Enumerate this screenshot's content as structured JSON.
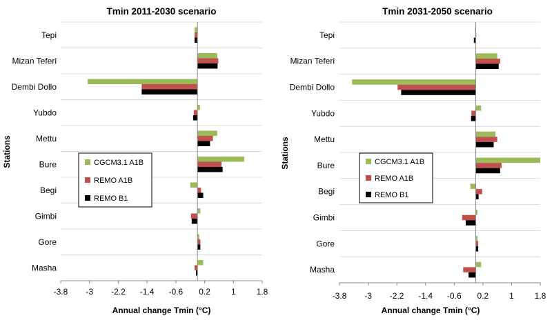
{
  "figure": {
    "y_axis_label": "Stations"
  },
  "chart_data": [
    {
      "type": "bar",
      "orientation": "horizontal",
      "title": "Tmin 2011-2030 scenario",
      "xlabel": "Annual change Tmin (°C)",
      "ylabel": "Stations",
      "xlim": [
        -3.8,
        1.8
      ],
      "xticks": [
        "-3.8",
        "-3",
        "-2.2",
        "-1.4",
        "-0.6",
        "0.2",
        "1",
        "1.8"
      ],
      "grid": "horizontal",
      "legend_position": "left-center",
      "categories": [
        "Tepi",
        "Mizan Teferi",
        "Dembi Dollo",
        "Yubdo",
        "Mettu",
        "Bure",
        "Begi",
        "Gimbi",
        "Gore",
        "Masha"
      ],
      "series": [
        {
          "name": "CGCM3.1 A1B",
          "color": "#9BBB59",
          "values": [
            -0.08,
            0.55,
            -3.05,
            0.07,
            0.55,
            1.3,
            -0.2,
            0.08,
            0.05,
            0.16
          ]
        },
        {
          "name": "REMO A1B",
          "color": "#C0504D",
          "values": [
            -0.08,
            0.58,
            -1.55,
            -0.1,
            0.43,
            0.67,
            0.1,
            -0.18,
            0.08,
            -0.08
          ]
        },
        {
          "name": "REMO B1",
          "color": "#000000",
          "values": [
            -0.08,
            0.56,
            -1.55,
            -0.12,
            0.35,
            0.7,
            0.16,
            -0.16,
            0.08,
            -0.04
          ]
        }
      ]
    },
    {
      "type": "bar",
      "orientation": "horizontal",
      "title": "Tmin 2031-2050 scenario",
      "xlabel": "Annual change Tmin (°C)",
      "ylabel": "Stations",
      "xlim": [
        -3.8,
        1.8
      ],
      "xticks": [
        "-3.8",
        "-3",
        "-2.2",
        "-1.4",
        "-0.6",
        "0.2",
        "1",
        "1.8"
      ],
      "grid": "horizontal",
      "legend_position": "left-center",
      "categories": [
        "Tepi",
        "Mizan Teferi",
        "Dembi Dollo",
        "Yubdo",
        "Mettu",
        "Bure",
        "Begi",
        "Gimbi",
        "Gore",
        "Masha"
      ],
      "series": [
        {
          "name": "CGCM3.1 A1B",
          "color": "#9BBB59",
          "values": [
            -0.02,
            0.6,
            -3.45,
            0.15,
            0.55,
            1.8,
            -0.15,
            0.05,
            0.05,
            0.15
          ]
        },
        {
          "name": "REMO A1B",
          "color": "#C0504D",
          "values": [
            0.0,
            0.68,
            -2.18,
            -0.12,
            0.6,
            0.72,
            0.18,
            -0.38,
            0.07,
            -0.35
          ]
        },
        {
          "name": "REMO B1",
          "color": "#000000",
          "values": [
            -0.05,
            0.64,
            -2.08,
            -0.13,
            0.5,
            0.68,
            0.08,
            -0.28,
            0.07,
            -0.2
          ]
        }
      ]
    }
  ]
}
